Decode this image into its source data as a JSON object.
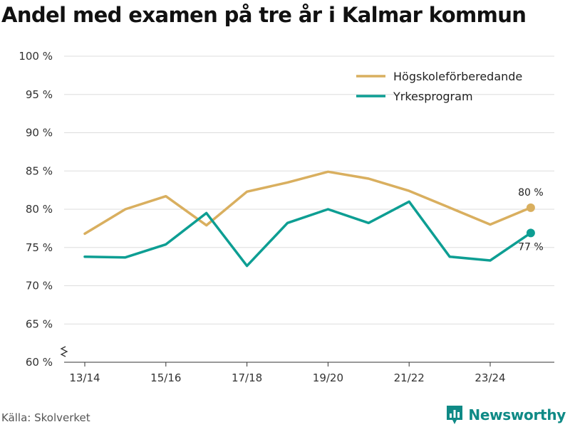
{
  "colors": {
    "hogskole": "#d9af5f",
    "yrkes": "#0d9e93",
    "grid": "#dddddd",
    "brand": "#0f8a86"
  },
  "chart_data": {
    "type": "line",
    "title": "Andel med examen på tre år i Kalmar kommun",
    "xlabel": "",
    "ylabel": "",
    "ylim": [
      60,
      100
    ],
    "yticks": [
      60,
      65,
      70,
      75,
      80,
      85,
      90,
      95,
      100
    ],
    "ytick_labels": [
      "60 %",
      "65 %",
      "70 %",
      "75 %",
      "80 %",
      "85 %",
      "90 %",
      "95 %",
      "100 %"
    ],
    "categories": [
      "13/14",
      "14/15",
      "15/16",
      "16/17",
      "17/18",
      "18/19",
      "19/20",
      "20/21",
      "21/22",
      "22/23",
      "23/24",
      "24/25"
    ],
    "xtick_labels": [
      "13/14",
      "15/16",
      "17/18",
      "19/20",
      "21/22",
      "23/24"
    ],
    "xtick_indices": [
      0,
      2,
      4,
      6,
      8,
      10
    ],
    "legend_position": "top-right",
    "series": [
      {
        "name": "Högskoleförberedande",
        "color_key": "hogskole",
        "values": [
          76.8,
          80.0,
          81.7,
          77.9,
          82.3,
          83.5,
          84.9,
          84.0,
          82.4,
          80.2,
          78.0,
          80.2
        ],
        "end_label": "80 %"
      },
      {
        "name": "Yrkesprogram",
        "color_key": "yrkes",
        "values": [
          73.8,
          73.7,
          75.4,
          79.5,
          72.6,
          78.2,
          80.0,
          78.2,
          81.0,
          73.8,
          73.3,
          76.9
        ],
        "end_label": "77 %"
      }
    ]
  },
  "footer": {
    "source": "Källa: Skolverket",
    "brand": "Newsworthy"
  }
}
